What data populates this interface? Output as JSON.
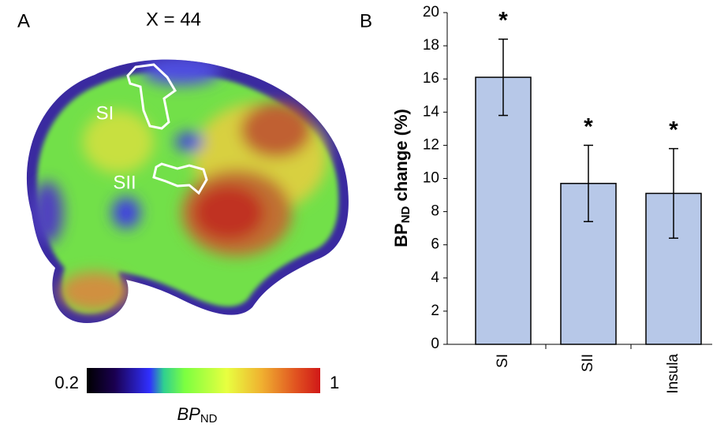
{
  "panel_a": {
    "letter": "A",
    "title": "X = 44",
    "regions": [
      "SI",
      "SII"
    ],
    "colorbar": {
      "clim": [
        0.2,
        1
      ],
      "ticks": [
        0.2,
        1
      ],
      "label": {
        "main": "BP",
        "sub": "ND"
      }
    }
  },
  "chart_data": {
    "type": "bar",
    "letter": "B",
    "ylabel": {
      "main": "BP",
      "sub": "ND",
      "rest": " change (%)"
    },
    "categories": [
      "SI",
      "SII",
      "Insula"
    ],
    "values": [
      16.1,
      9.7,
      9.1
    ],
    "errors": [
      2.3,
      2.3,
      2.7
    ],
    "significance": [
      "*",
      "*",
      "*"
    ],
    "color": "#b7c8e8",
    "ylim": [
      0,
      20
    ],
    "yticks": [
      0,
      2,
      4,
      6,
      8,
      10,
      12,
      14,
      16,
      18,
      20
    ]
  }
}
